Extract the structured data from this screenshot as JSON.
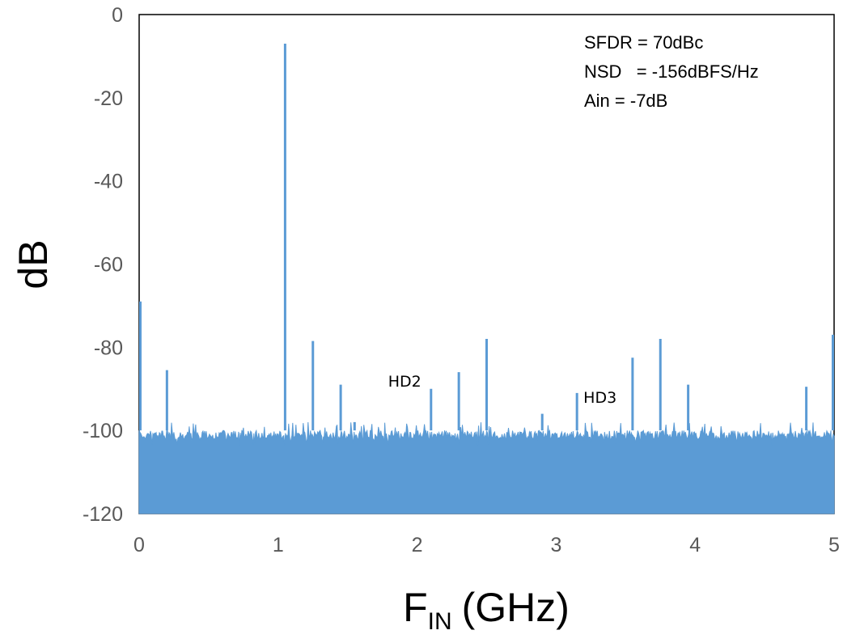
{
  "chart_data": {
    "type": "line",
    "title": "",
    "xlabel_main": "F",
    "xlabel_sub": "IN",
    "xlabel_unit": "(GHz)",
    "ylabel": "dB",
    "xlim": [
      0,
      5
    ],
    "ylim": [
      -120,
      0
    ],
    "xticks": [
      0,
      1,
      2,
      3,
      4,
      5
    ],
    "yticks": [
      0,
      -20,
      -40,
      -60,
      -80,
      -100,
      -120
    ],
    "grid": false,
    "series_color": "#5b9bd5",
    "noise_floor_db": -100,
    "spurs": [
      {
        "x": 0.0,
        "y": -69
      },
      {
        "x": 0.2,
        "y": -85.5
      },
      {
        "x": 1.05,
        "y": -7
      },
      {
        "x": 1.25,
        "y": -78.5
      },
      {
        "x": 1.45,
        "y": -89
      },
      {
        "x": 1.55,
        "y": -98
      },
      {
        "x": 2.1,
        "y": -90
      },
      {
        "x": 2.3,
        "y": -86
      },
      {
        "x": 2.5,
        "y": -78
      },
      {
        "x": 2.9,
        "y": -96
      },
      {
        "x": 3.15,
        "y": -91
      },
      {
        "x": 3.55,
        "y": -82.5
      },
      {
        "x": 3.75,
        "y": -78
      },
      {
        "x": 3.95,
        "y": -89
      },
      {
        "x": 4.8,
        "y": -89.5
      },
      {
        "x": 5.0,
        "y": -77
      }
    ],
    "annotations": [
      {
        "text": "HD2",
        "x": 2.1,
        "y": -90
      },
      {
        "text": "HD3",
        "x": 3.15,
        "y": -91
      }
    ],
    "info_lines": [
      "SFDR = 70dBc",
      "NSD   = -156dBFS/Hz",
      "Ain = -7dB"
    ]
  }
}
